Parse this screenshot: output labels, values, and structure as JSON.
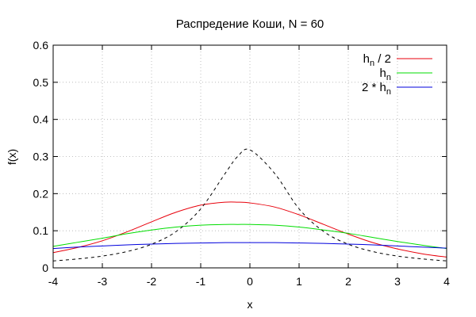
{
  "chart_data": {
    "type": "line",
    "title": "Распредение Коши, N = 60",
    "xlabel": "x",
    "ylabel": "f(x)",
    "xlim": [
      -4,
      4
    ],
    "ylim": [
      0,
      0.6
    ],
    "xticks": [
      -4,
      -3,
      -2,
      -1,
      0,
      1,
      2,
      3,
      4
    ],
    "yticks": [
      0,
      0.1,
      0.2,
      0.3,
      0.4,
      0.5,
      0.6
    ],
    "xtick_labels": [
      "-4",
      "-3",
      "-2",
      "-1",
      "0",
      "1",
      "2",
      "3",
      "4"
    ],
    "ytick_labels": [
      "0",
      "0.1",
      "0.2",
      "0.3",
      "0.4",
      "0.5",
      "0.6"
    ],
    "grid": true,
    "legend_position": "top-right",
    "x": [
      -4,
      -3.5,
      -3,
      -2.5,
      -2,
      -1.5,
      -1,
      -0.5,
      -0.25,
      0,
      0.5,
      1,
      1.5,
      2,
      2.5,
      3,
      3.5,
      4
    ],
    "series": [
      {
        "legend": {
          "base": "h",
          "sub": "n",
          "suffix": " / 2",
          "prefix": ""
        },
        "color": "#e8000b",
        "dash": "solid",
        "values": [
          0.041,
          0.055,
          0.073,
          0.097,
          0.124,
          0.15,
          0.169,
          0.177,
          0.177,
          0.175,
          0.164,
          0.143,
          0.117,
          0.091,
          0.068,
          0.051,
          0.038,
          0.029
        ]
      },
      {
        "legend": {
          "base": "h",
          "sub": "n",
          "suffix": "",
          "prefix": ""
        },
        "color": "#00dd00",
        "dash": "solid",
        "values": [
          0.058,
          0.069,
          0.08,
          0.092,
          0.102,
          0.11,
          0.115,
          0.117,
          0.117,
          0.117,
          0.115,
          0.11,
          0.102,
          0.093,
          0.082,
          0.071,
          0.061,
          0.052
        ]
      },
      {
        "legend": {
          "base": "h",
          "sub": "n",
          "suffix": "",
          "prefix": "2 * "
        },
        "color": "#0000dd",
        "dash": "solid",
        "values": [
          0.052,
          0.056,
          0.059,
          0.062,
          0.064,
          0.066,
          0.067,
          0.068,
          0.068,
          0.068,
          0.068,
          0.067,
          0.066,
          0.064,
          0.062,
          0.059,
          0.056,
          0.053
        ]
      },
      {
        "legend": null,
        "color": "#000000",
        "dash": "dashed",
        "values": [
          0.0187,
          0.0241,
          0.0318,
          0.0439,
          0.0637,
          0.0979,
          0.159,
          0.255,
          0.3,
          0.318,
          0.255,
          0.159,
          0.0979,
          0.0637,
          0.0439,
          0.0318,
          0.0241,
          0.0187
        ]
      }
    ]
  }
}
